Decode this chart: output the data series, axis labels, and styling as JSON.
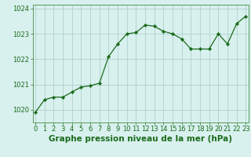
{
  "x": [
    0,
    1,
    2,
    3,
    4,
    5,
    6,
    7,
    8,
    9,
    10,
    11,
    12,
    13,
    14,
    15,
    16,
    17,
    18,
    19,
    20,
    21,
    22,
    23
  ],
  "y": [
    1019.9,
    1020.4,
    1020.5,
    1020.5,
    1020.7,
    1020.9,
    1020.95,
    1021.05,
    1022.1,
    1022.6,
    1023.0,
    1023.05,
    1023.35,
    1023.3,
    1023.1,
    1023.0,
    1022.8,
    1022.4,
    1022.4,
    1022.4,
    1023.0,
    1022.6,
    1023.4,
    1023.7
  ],
  "line_color": "#1a6b1a",
  "marker_color": "#1a6b1a",
  "bg_color": "#d8f0ee",
  "grid_color": "#a8ccc8",
  "xlabel": "Graphe pression niveau de la mer (hPa)",
  "ylim_min": 1019.5,
  "ylim_max": 1024.15,
  "yticks": [
    1020,
    1021,
    1022,
    1023,
    1024
  ],
  "xticks": [
    0,
    1,
    2,
    3,
    4,
    5,
    6,
    7,
    8,
    9,
    10,
    11,
    12,
    13,
    14,
    15,
    16,
    17,
    18,
    19,
    20,
    21,
    22,
    23
  ],
  "title_fontsize": 7.5,
  "tick_fontsize": 6.0,
  "axis_color": "#1a6b1a",
  "spine_color": "#5a9a5a"
}
